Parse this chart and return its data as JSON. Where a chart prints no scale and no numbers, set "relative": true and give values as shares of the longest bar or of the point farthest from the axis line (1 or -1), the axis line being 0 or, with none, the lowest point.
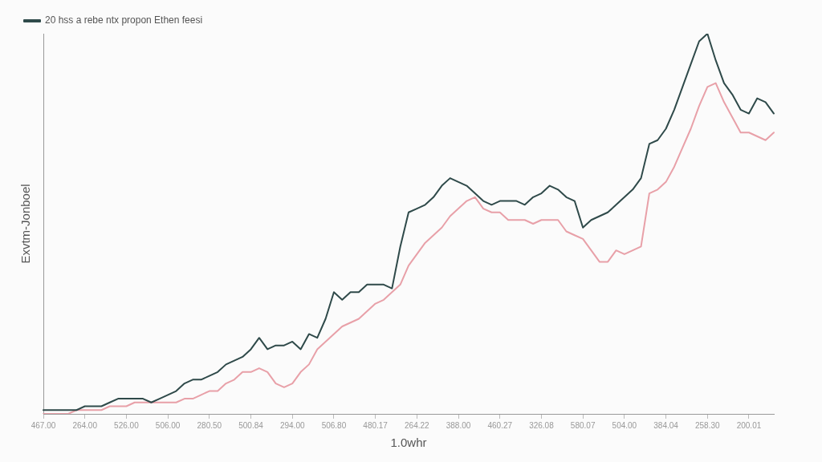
{
  "chart_data": {
    "type": "line",
    "xlabel": "1.0whr",
    "ylabel": "Exvtm-Jonboel",
    "legend": "top left",
    "marker": "none",
    "line_style": "solid",
    "relative": true,
    "categories": [
      "467.00",
      null,
      null,
      null,
      null,
      "264.00",
      null,
      null,
      null,
      null,
      "526.00",
      null,
      null,
      null,
      null,
      "506.00",
      null,
      null,
      null,
      null,
      "280.50",
      null,
      null,
      null,
      null,
      "500.84",
      null,
      null,
      null,
      null,
      "294.00",
      null,
      null,
      null,
      null,
      "506.80",
      null,
      null,
      null,
      null,
      "480.17",
      null,
      null,
      null,
      null,
      "264.22",
      null,
      null,
      null,
      null,
      "388.00",
      null,
      null,
      null,
      null,
      "460.27",
      null,
      null,
      null,
      null,
      "326.08",
      null,
      null,
      null,
      null,
      "580.07",
      null,
      null,
      null,
      null,
      "504.00",
      null,
      null,
      null,
      null,
      "384.04",
      null,
      null,
      null,
      null,
      "258.30",
      null,
      null,
      null,
      null,
      "200.01",
      null,
      null,
      null
    ],
    "series": [
      {
        "name": "20 hss a rebe ntx propon Ethen feesi",
        "color": "#2f4a4a",
        "values": [
          0.01,
          0.01,
          0.01,
          0.01,
          0.01,
          0.02,
          0.02,
          0.02,
          0.03,
          0.04,
          0.04,
          0.04,
          0.04,
          0.03,
          0.04,
          0.05,
          0.06,
          0.08,
          0.09,
          0.09,
          0.1,
          0.11,
          0.13,
          0.14,
          0.15,
          0.17,
          0.2,
          0.17,
          0.18,
          0.18,
          0.19,
          0.17,
          0.21,
          0.2,
          0.25,
          0.32,
          0.3,
          0.32,
          0.32,
          0.34,
          0.34,
          0.34,
          0.33,
          0.44,
          0.53,
          0.54,
          0.55,
          0.57,
          0.6,
          0.62,
          0.61,
          0.6,
          0.58,
          0.56,
          0.55,
          0.56,
          0.56,
          0.56,
          0.55,
          0.57,
          0.58,
          0.6,
          0.59,
          0.57,
          0.56,
          0.49,
          0.51,
          0.52,
          0.53,
          0.55,
          0.57,
          0.59,
          0.62,
          0.71,
          0.72,
          0.75,
          0.8,
          0.86,
          0.92,
          0.98,
          1.0,
          0.93,
          0.87,
          0.84,
          0.8,
          0.79,
          0.83,
          0.82,
          0.79
        ]
      },
      {
        "color": "#e8a0a8",
        "values": [
          0.0,
          0.0,
          0.0,
          0.0,
          0.01,
          0.01,
          0.01,
          0.01,
          0.02,
          0.02,
          0.02,
          0.03,
          0.03,
          0.03,
          0.03,
          0.03,
          0.03,
          0.04,
          0.04,
          0.05,
          0.06,
          0.06,
          0.08,
          0.09,
          0.11,
          0.11,
          0.12,
          0.11,
          0.08,
          0.07,
          0.08,
          0.11,
          0.13,
          0.17,
          0.19,
          0.21,
          0.23,
          0.24,
          0.25,
          0.27,
          0.29,
          0.3,
          0.32,
          0.34,
          0.39,
          0.42,
          0.45,
          0.47,
          0.49,
          0.52,
          0.54,
          0.56,
          0.57,
          0.54,
          0.53,
          0.53,
          0.51,
          0.51,
          0.51,
          0.5,
          0.51,
          0.51,
          0.51,
          0.48,
          0.47,
          0.46,
          0.43,
          0.4,
          0.4,
          0.43,
          0.42,
          0.43,
          0.44,
          0.58,
          0.59,
          0.61,
          0.65,
          0.7,
          0.75,
          0.81,
          0.86,
          0.87,
          0.82,
          0.78,
          0.74,
          0.74,
          0.73,
          0.72,
          0.74
        ]
      }
    ]
  }
}
